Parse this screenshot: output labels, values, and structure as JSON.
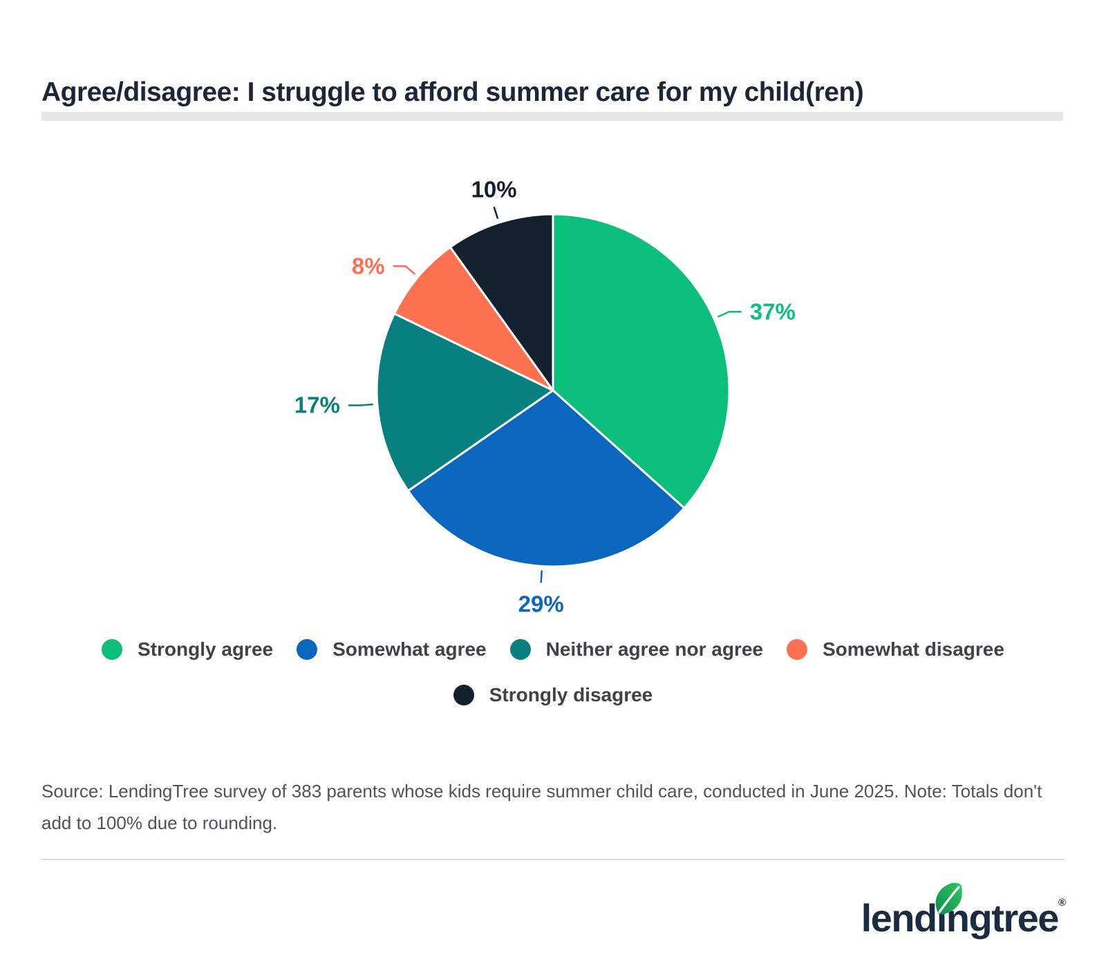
{
  "title": "Agree/disagree: I struggle to afford summer care for my child(ren)",
  "chart_data": {
    "type": "pie",
    "title": "Agree/disagree: I struggle to afford summer care for my child(ren)",
    "slices": [
      {
        "label": "Strongly agree",
        "value": 37,
        "display": "37%",
        "color": "#0DBF7C"
      },
      {
        "label": "Somewhat agree",
        "value": 29,
        "display": "29%",
        "color": "#0A67BD"
      },
      {
        "label": "Neither agree nor agree",
        "value": 17,
        "display": "17%",
        "color": "#088080"
      },
      {
        "label": "Somewhat disagree",
        "value": 8,
        "display": "8%",
        "color": "#FC7150"
      },
      {
        "label": "Strongly disagree",
        "value": 10,
        "display": "10%",
        "color": "#13202E"
      }
    ],
    "start_angle_deg": 0,
    "direction": "clockwise",
    "data_labels": "outside with connector lines, colored to match slice",
    "legend_position": "bottom"
  },
  "source": {
    "text": "Source: LendingTree survey of 383 parents whose kids require summer child care, conducted in June 2025. Note: Totals don't add to 100% due to rounding."
  },
  "branding": {
    "logo_text_before_i": "lend",
    "logo_text_dotless_i": "ı",
    "logo_text_after_i": "ngtree",
    "registered_mark": "®",
    "logo_color": "#1B2B40",
    "leaf_green_light": "#2DC95F",
    "leaf_green_dark": "#0F8C4F"
  }
}
